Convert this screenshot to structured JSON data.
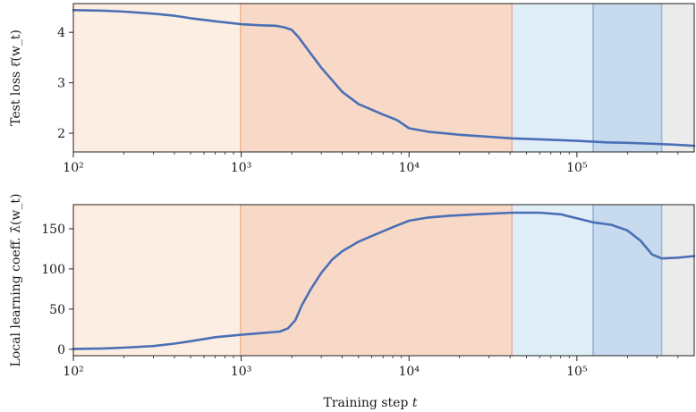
{
  "chart_data": [
    {
      "type": "line",
      "ylabel": "Test loss  ℓ̂(w_t)",
      "xscale": "log",
      "xlim": [
        100,
        500000
      ],
      "ylim": [
        1.63,
        4.57
      ],
      "yticks": [
        2,
        3,
        4
      ],
      "ytick_labels": [
        "2",
        "3",
        "4"
      ],
      "xticks": [
        100,
        1000,
        10000,
        100000
      ],
      "xtick_labels": [
        "10²",
        "10³",
        "10⁴",
        "10⁵"
      ],
      "grid": false,
      "line_color": "#4a6fb5",
      "stages": [
        {
          "start": 100,
          "end": 990,
          "color": "#fdeee3"
        },
        {
          "start": 990,
          "end": 41000,
          "color": "#f8d9c8"
        },
        {
          "start": 41000,
          "end": 125000,
          "color": "#e0eef8"
        },
        {
          "start": 125000,
          "end": 320000,
          "color": "#c7daee"
        },
        {
          "start": 320000,
          "end": 500000,
          "color": "#ebebeb"
        }
      ],
      "boundary_colors": [
        "#f0b894",
        "#e5b3a0",
        "#8fb4d6",
        "#9fb9d4"
      ],
      "series": [
        {
          "x": [
            100,
            150,
            200,
            300,
            400,
            500,
            700,
            1000,
            1300,
            1600,
            1800,
            2000,
            2200,
            2500,
            3000,
            4000,
            5000,
            7000,
            8500,
            10000,
            13000,
            20000,
            30000,
            41000,
            60000,
            100000,
            150000,
            200000,
            300000,
            400000,
            500000
          ],
          "values": [
            4.44,
            4.43,
            4.41,
            4.37,
            4.33,
            4.28,
            4.22,
            4.16,
            4.14,
            4.13,
            4.1,
            4.05,
            3.9,
            3.65,
            3.3,
            2.82,
            2.58,
            2.37,
            2.26,
            2.1,
            2.03,
            1.97,
            1.93,
            1.9,
            1.88,
            1.85,
            1.82,
            1.81,
            1.79,
            1.77,
            1.75
          ]
        }
      ]
    },
    {
      "type": "line",
      "ylabel": "Local learning coeff.  λ̂(w_t)",
      "xlabel": "Training step t",
      "xscale": "log",
      "xlim": [
        100,
        500000
      ],
      "ylim": [
        -8,
        180
      ],
      "yticks": [
        0,
        50,
        100,
        150
      ],
      "ytick_labels": [
        "0",
        "50",
        "100",
        "150"
      ],
      "xticks": [
        100,
        1000,
        10000,
        100000
      ],
      "xtick_labels": [
        "10²",
        "10³",
        "10⁴",
        "10⁵"
      ],
      "grid": false,
      "line_color": "#4a6fb5",
      "stages": [
        {
          "start": 100,
          "end": 990,
          "color": "#fdeee3"
        },
        {
          "start": 990,
          "end": 41000,
          "color": "#f8d9c8"
        },
        {
          "start": 41000,
          "end": 125000,
          "color": "#e0eef8"
        },
        {
          "start": 125000,
          "end": 320000,
          "color": "#c7daee"
        },
        {
          "start": 320000,
          "end": 500000,
          "color": "#ebebeb"
        }
      ],
      "boundary_colors": [
        "#f0b894",
        "#e5b3a0",
        "#8fb4d6",
        "#9fb9d4"
      ],
      "series": [
        {
          "x": [
            100,
            150,
            200,
            300,
            400,
            500,
            700,
            1000,
            1300,
            1700,
            1900,
            2100,
            2300,
            2600,
            3000,
            3500,
            4000,
            5000,
            6000,
            8000,
            10000,
            13000,
            17000,
            25000,
            41000,
            60000,
            80000,
            100000,
            125000,
            160000,
            200000,
            240000,
            280000,
            320000,
            400000,
            500000
          ],
          "values": [
            0.5,
            1,
            2,
            4,
            7,
            10,
            15,
            18,
            20,
            22,
            26,
            36,
            55,
            75,
            95,
            112,
            122,
            134,
            141,
            152,
            160,
            164,
            166,
            168,
            170,
            170,
            168,
            163,
            158,
            155,
            148,
            135,
            118,
            113,
            114,
            116
          ]
        }
      ]
    }
  ]
}
